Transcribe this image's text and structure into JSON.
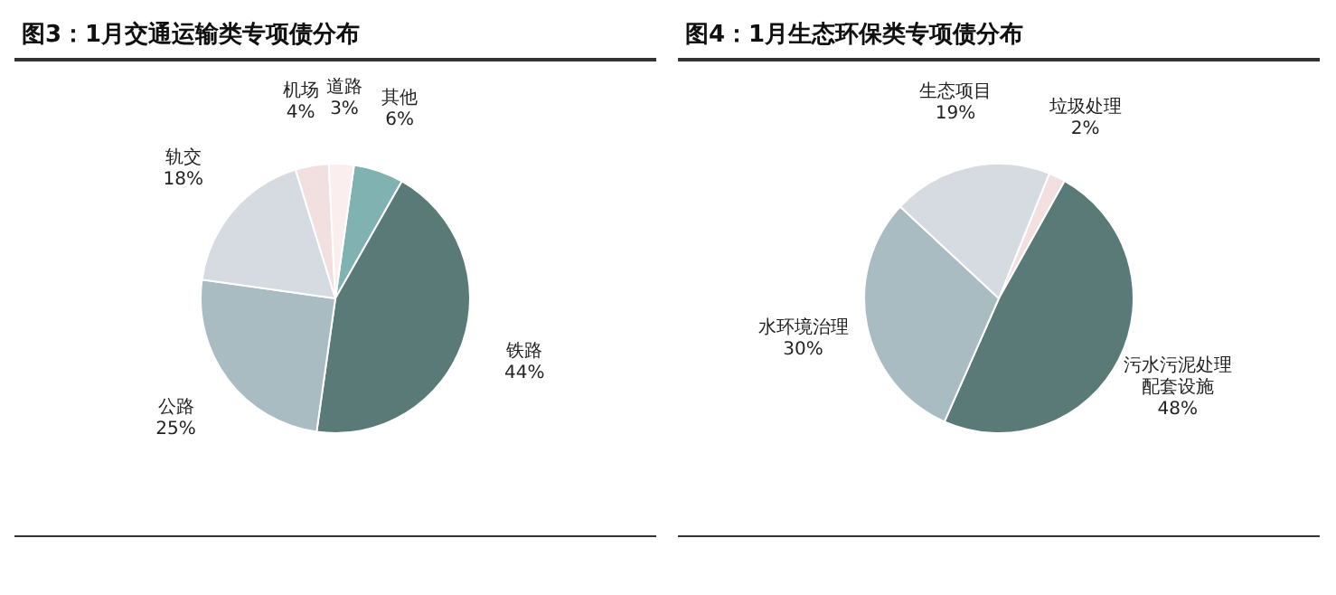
{
  "chart_data": [
    {
      "type": "pie",
      "title": "图3：1月交通运输类专项债分布",
      "categories": [
        "其他",
        "铁路",
        "公路",
        "轨交",
        "机场",
        "道路"
      ],
      "values": [
        6,
        44,
        25,
        18,
        4,
        3
      ],
      "value_labels": [
        "6%",
        "44%",
        "25%",
        "18%",
        "4%",
        "3%"
      ],
      "colors": [
        "#7fb2b0",
        "#5a7a78",
        "#a9bcc1",
        "#d5dbe0",
        "#f2dfe0",
        "#fbeeee"
      ],
      "legend": false
    },
    {
      "type": "pie",
      "title": "图4：1月生态环保类专项债分布",
      "categories": [
        "垃圾处理",
        "污水污泥处理配套设施",
        "水环境治理",
        "生态项目"
      ],
      "values": [
        2,
        48,
        30,
        19
      ],
      "value_labels": [
        "2%",
        "48%",
        "30%",
        "19%"
      ],
      "colors": [
        "#f2dfe0",
        "#5a7a78",
        "#a9bcc1",
        "#d5dbe0"
      ],
      "legend": false
    }
  ]
}
